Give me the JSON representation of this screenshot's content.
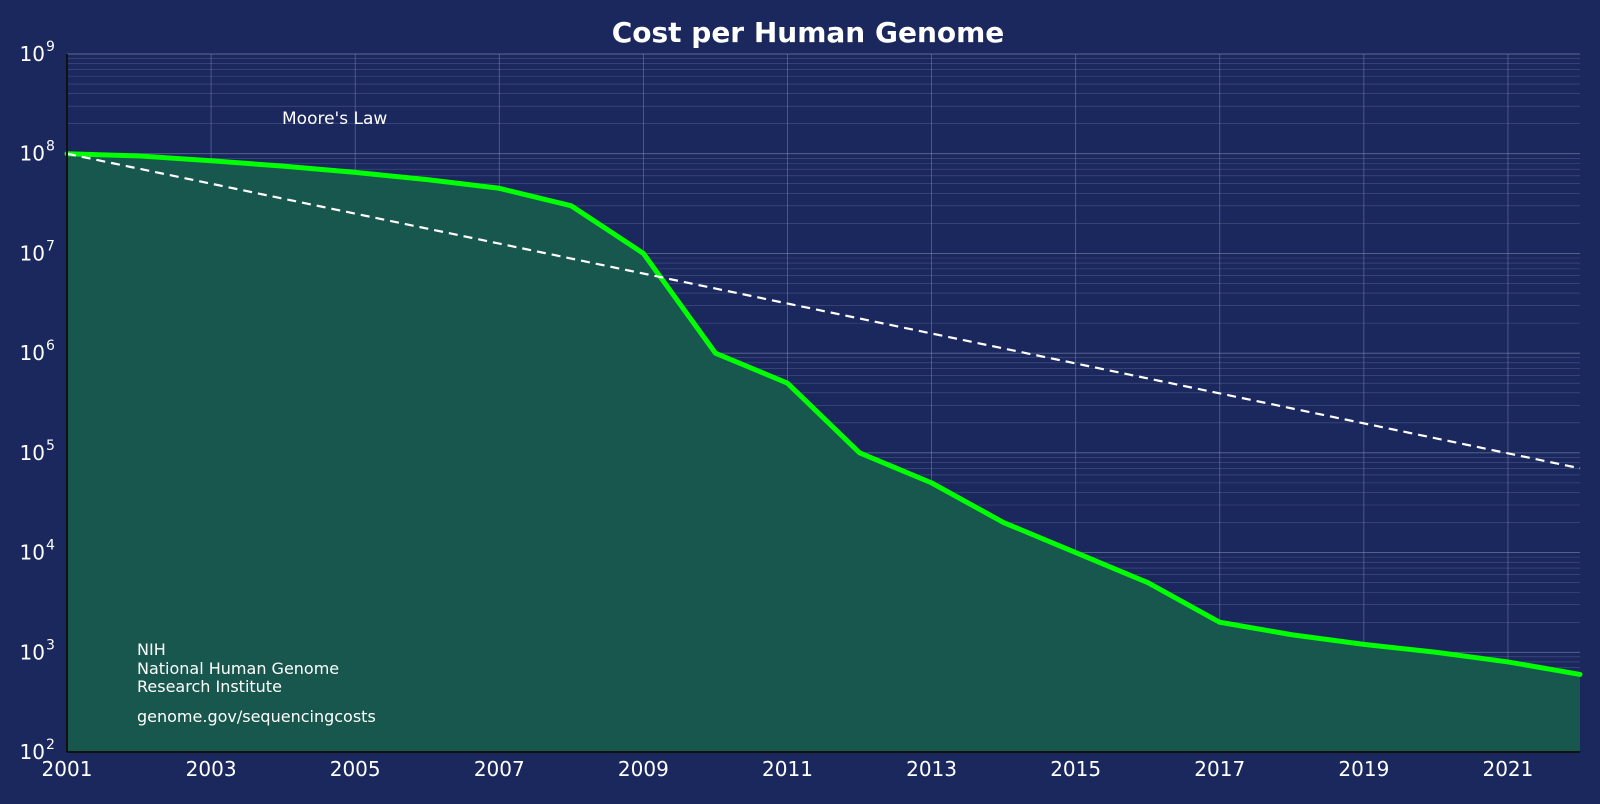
{
  "chart_data": {
    "type": "line",
    "title": "Cost per Human Genome",
    "xlabel": "",
    "ylabel": "",
    "y_scale": "log",
    "xlim": [
      2001,
      2022
    ],
    "ylim": [
      100,
      1000000000
    ],
    "x_ticks": [
      2001,
      2003,
      2005,
      2007,
      2009,
      2011,
      2013,
      2015,
      2017,
      2019,
      2021
    ],
    "y_ticks": [
      {
        "value": 100,
        "base": "10",
        "exp": "2"
      },
      {
        "value": 1000,
        "base": "10",
        "exp": "3"
      },
      {
        "value": 10000,
        "base": "10",
        "exp": "4"
      },
      {
        "value": 100000,
        "base": "10",
        "exp": "5"
      },
      {
        "value": 1000000,
        "base": "10",
        "exp": "6"
      },
      {
        "value": 10000000,
        "base": "10",
        "exp": "7"
      },
      {
        "value": 100000000,
        "base": "10",
        "exp": "8"
      },
      {
        "value": 1000000000,
        "base": "10",
        "exp": "9"
      }
    ],
    "grid": true,
    "series": [
      {
        "name": "",
        "style": "solid",
        "color": "#00ff00",
        "fill_color": "#18574e",
        "x": [
          2001,
          2002,
          2003,
          2004,
          2005,
          2006,
          2007,
          2008,
          2009,
          2010,
          2011,
          2012,
          2013,
          2014,
          2015,
          2016,
          2017,
          2018,
          2019,
          2020,
          2021,
          2022
        ],
        "values": [
          100000000,
          95000000,
          85000000,
          75000000,
          65000000,
          55000000,
          45000000,
          30000000,
          10000000,
          1000000,
          500000,
          100000,
          50000,
          20000,
          10000,
          5000,
          2000,
          1500,
          1200,
          1000,
          800,
          600
        ]
      },
      {
        "name": "Moore's Law",
        "style": "dashed",
        "color": "#ffffff",
        "x": [
          2001,
          2022
        ],
        "values": [
          100000000,
          70000
        ]
      }
    ],
    "annotations": {
      "moores_law_label": "Moore's Law",
      "source_line1": "NIH",
      "source_line2": "National Human Genome",
      "source_line3": "Research Institute",
      "source_url": "genome.gov/sequencingcosts"
    },
    "colors": {
      "background": "#1b285e",
      "grid": "#8a93b5",
      "area_fill": "#18574e",
      "main_line": "#00ff00",
      "moore_line": "#ffffff"
    }
  }
}
